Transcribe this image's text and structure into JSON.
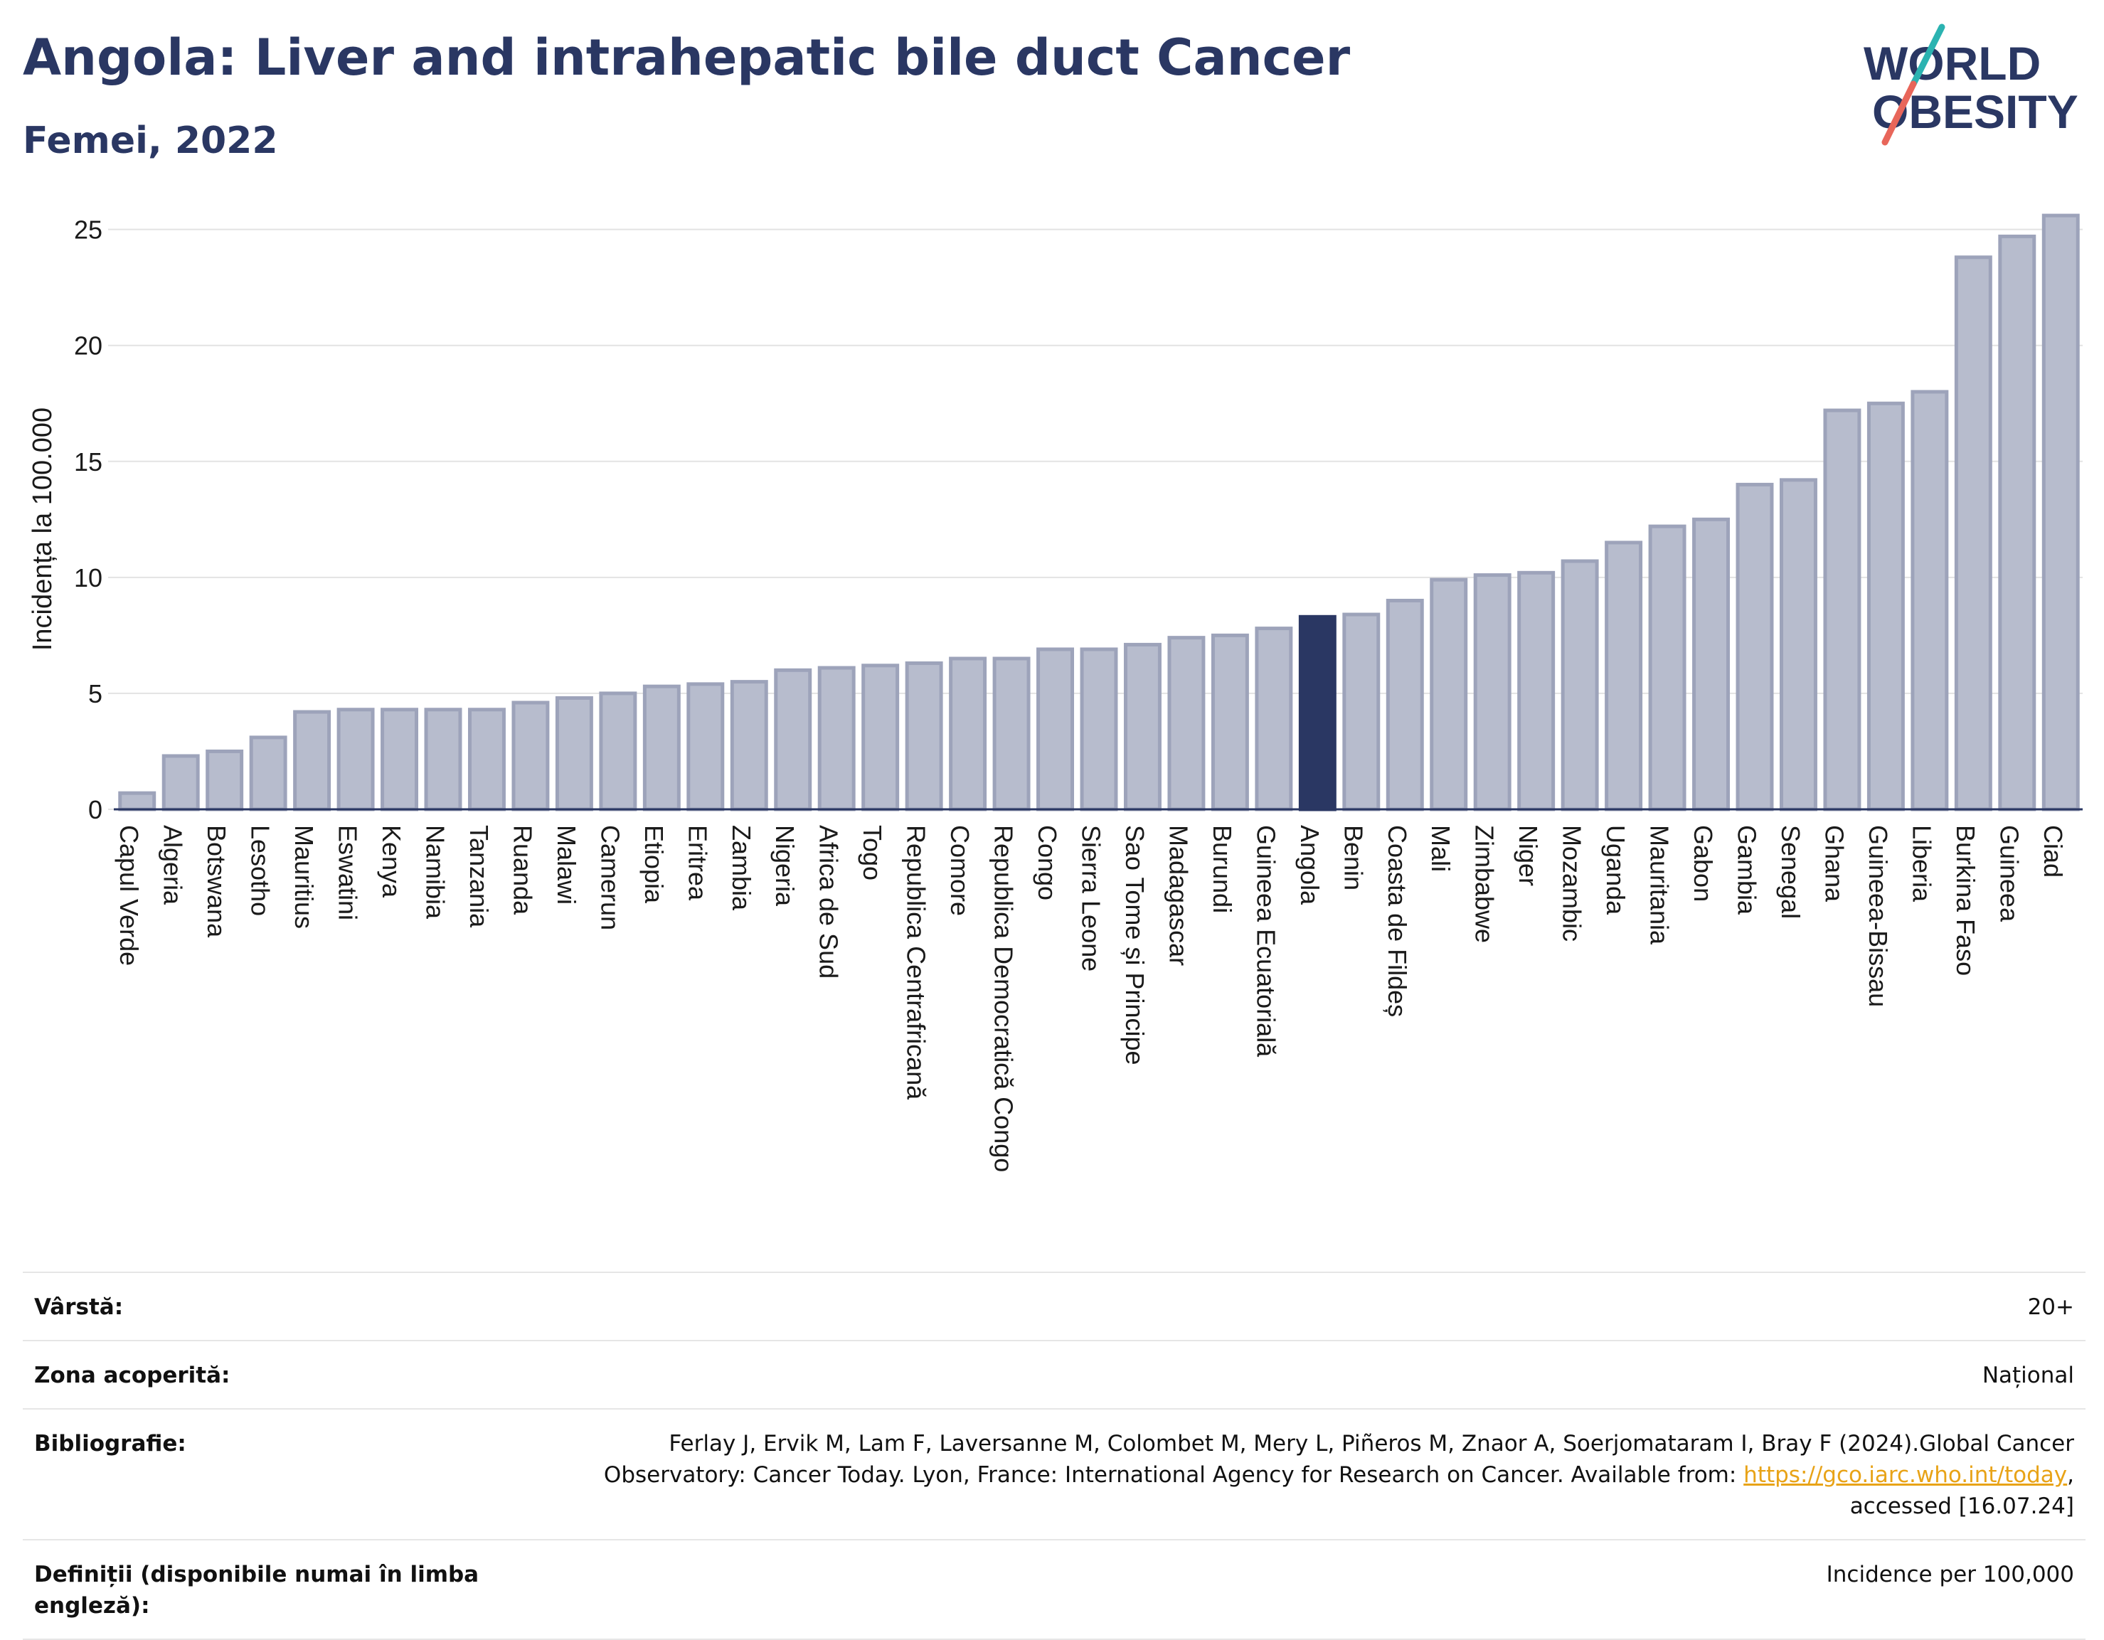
{
  "header": {
    "title": "Angola: Liver and intrahepatic bile duct Cancer",
    "subtitle": "Femei, 2022"
  },
  "logo": {
    "line1": "WORLD",
    "line2": "OBESITY",
    "text_color": "#2a3763",
    "accent_teal": "#2bb3b1",
    "accent_red": "#e8665a"
  },
  "chart_data": {
    "type": "bar",
    "title": "Angola: Liver and intrahepatic bile duct Cancer",
    "subtitle": "Femei, 2022",
    "xlabel": "",
    "ylabel": "Incidența la 100.000",
    "ylim": [
      0,
      26
    ],
    "yticks": [
      0,
      5,
      10,
      15,
      20,
      25
    ],
    "grid": true,
    "highlight": "Angola",
    "colors": {
      "bar": "#b7bccd",
      "bar_edge": "#9da3ba",
      "highlight": "#2a3763"
    },
    "categories": [
      "Capul Verde",
      "Algeria",
      "Botswana",
      "Lesotho",
      "Mauritius",
      "Eswatini",
      "Kenya",
      "Namibia",
      "Tanzania",
      "Ruanda",
      "Malawi",
      "Camerun",
      "Etiopia",
      "Eritrea",
      "Zambia",
      "Nigeria",
      "Africa de Sud",
      "Togo",
      "Republica Centrafricană",
      "Comore",
      "Republica Democratică Congo",
      "Congo",
      "Sierra Leone",
      "Sao Tome și Principe",
      "Madagascar",
      "Burundi",
      "Guineea Ecuatorială",
      "Angola",
      "Benin",
      "Coasta de Fildeș",
      "Mali",
      "Zimbabwe",
      "Niger",
      "Mozambic",
      "Uganda",
      "Mauritania",
      "Gabon",
      "Gambia",
      "Senegal",
      "Ghana",
      "Guineea-Bissau",
      "Liberia",
      "Burkina Faso",
      "Guineea",
      "Ciad"
    ],
    "values": [
      0.7,
      2.3,
      2.5,
      3.1,
      4.2,
      4.3,
      4.3,
      4.3,
      4.3,
      4.6,
      4.8,
      5.0,
      5.3,
      5.4,
      5.5,
      6.0,
      6.1,
      6.2,
      6.3,
      6.5,
      6.5,
      6.9,
      6.9,
      7.1,
      7.4,
      7.5,
      7.8,
      8.3,
      8.4,
      9.0,
      9.9,
      10.1,
      10.2,
      10.7,
      11.5,
      12.2,
      12.5,
      14.0,
      14.2,
      17.2,
      17.5,
      18.0,
      23.8,
      24.7,
      25.6
    ]
  },
  "info": [
    {
      "label": "Vârstă:",
      "value": "20+"
    },
    {
      "label": "Zona acoperită:",
      "value": "Național"
    },
    {
      "label": "Bibliografie:",
      "value_line1": "Ferlay J, Ervik M, Lam F, Laversanne M, Colombet M, Mery L, Piñeros M, Znaor A, Soerjomataram I, Bray F (2024).Global Cancer",
      "value_line2": "Observatory: Cancer Today. Lyon, France: International Agency for Research on Cancer. Available from: ",
      "link": "https://gco.iarc.who.int/today",
      "value_line2_end": ",",
      "value_line3": "accessed [16.07.24]"
    },
    {
      "label": "Definiții (disponibile numai în limba engleză):",
      "value": "Incidence per 100,000"
    }
  ]
}
